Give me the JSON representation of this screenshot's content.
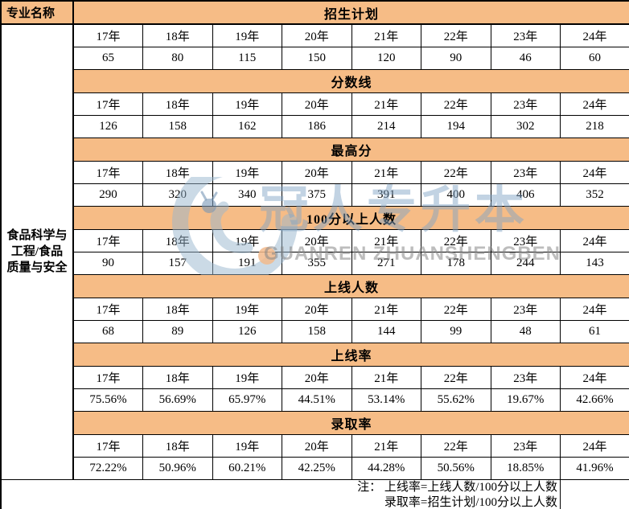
{
  "colors": {
    "band_orange": "#F6BC86",
    "border_black": "#000000",
    "watermark_blue": "#A9C6DD",
    "watermark_gray": "#B9B9B9",
    "watermark_dot_orange": "#F2BE92"
  },
  "table": {
    "program_name_lines": [
      "食品科学与",
      "工程/食品",
      "质量与安全"
    ]
  },
  "watermark": {
    "cn_text": "冠人专升本",
    "latin_text": "GUANREN ZHUANSHENGBEN"
  },
  "chart_data": {
    "type": "table",
    "row_group_label": "专业名称",
    "program_name": "食品科学与工程/食品质量与安全",
    "columns": [
      "17年",
      "18年",
      "19年",
      "20年",
      "21年",
      "22年",
      "23年",
      "24年"
    ],
    "sections": [
      {
        "name": "招生计划",
        "values": [
          65,
          80,
          115,
          150,
          120,
          90,
          46,
          60
        ]
      },
      {
        "name": "分数线",
        "values": [
          126,
          158,
          162,
          186,
          214,
          194,
          302,
          218
        ]
      },
      {
        "name": "最高分",
        "values": [
          290,
          320,
          340,
          375,
          391,
          400,
          406,
          352
        ]
      },
      {
        "name": "100分以上人数",
        "values": [
          90,
          157,
          191,
          355,
          271,
          178,
          244,
          143
        ]
      },
      {
        "name": "上线人数",
        "values": [
          68,
          89,
          126,
          158,
          144,
          99,
          48,
          61
        ]
      },
      {
        "name": "上线率",
        "values": [
          "75.56%",
          "56.69%",
          "65.97%",
          "44.51%",
          "53.14%",
          "55.62%",
          "19.67%",
          "42.66%"
        ]
      },
      {
        "name": "录取率",
        "values": [
          "72.22%",
          "50.96%",
          "60.21%",
          "42.25%",
          "44.28%",
          "50.56%",
          "18.85%",
          "41.96%"
        ]
      }
    ],
    "notes": [
      "注： 上线率=上线人数/100分以上人数",
      "录取率=招生计划/100分以上人数"
    ]
  }
}
